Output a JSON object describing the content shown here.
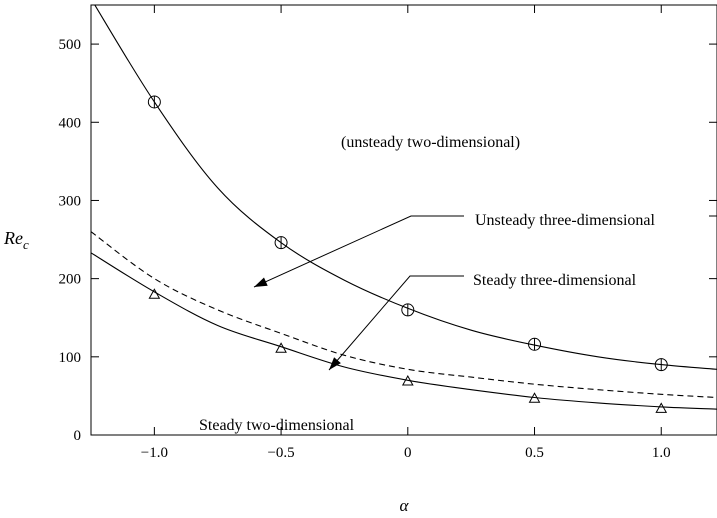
{
  "chart_data": {
    "type": "line",
    "xlabel": "α",
    "ylabel": "Re",
    "ylabel_sub": "c",
    "xlim": [
      -1.25,
      1.22
    ],
    "ylim": [
      0,
      550
    ],
    "x_ticks": [
      -1.0,
      -0.5,
      0,
      0.5,
      1.0
    ],
    "x_tick_labels": [
      "−1.0",
      "−0.5",
      "0",
      "0.5",
      "1.0"
    ],
    "y_ticks": [
      0,
      100,
      200,
      300,
      400,
      500
    ],
    "y_tick_labels": [
      "0",
      "100",
      "200",
      "300",
      "400",
      "500"
    ],
    "grid": false,
    "series": [
      {
        "style": "solid",
        "x": [
          -1.25,
          -1.0,
          -0.75,
          -0.5,
          -0.25,
          0.0,
          0.25,
          0.5,
          0.75,
          1.0,
          1.22
        ],
        "y": [
          558,
          426,
          316,
          246,
          198,
          162,
          134,
          115,
          100,
          90,
          84
        ]
      },
      {
        "style": "dashed",
        "x": [
          -1.25,
          -1.0,
          -0.75,
          -0.5,
          -0.25,
          0.0,
          0.25,
          0.5,
          0.75,
          1.0,
          1.22
        ],
        "y": [
          260,
          200,
          160,
          130,
          102,
          84,
          74,
          65,
          58,
          52,
          48
        ]
      },
      {
        "style": "solid",
        "x": [
          -1.25,
          -1.0,
          -0.75,
          -0.5,
          -0.25,
          0.0,
          0.25,
          0.5,
          0.75,
          1.0,
          1.22
        ],
        "y": [
          233,
          183,
          140,
          113,
          87,
          70,
          58,
          48,
          41,
          36,
          33
        ]
      }
    ],
    "markers": {
      "circles": {
        "x": [
          -1.0,
          -0.5,
          0.0,
          0.5,
          1.0
        ],
        "y": [
          426,
          246,
          160,
          116,
          90
        ]
      },
      "triangles": {
        "x": [
          -1.0,
          -0.5,
          0.0,
          0.5,
          1.0
        ],
        "y": [
          180,
          111,
          69,
          47,
          34
        ]
      }
    },
    "annotations": [
      {
        "text": "(unsteady two-dimensional)"
      },
      {
        "text": "Unsteady three-dimensional"
      },
      {
        "text": "Steady three-dimensional"
      },
      {
        "text": "Steady two-dimensional"
      }
    ]
  }
}
